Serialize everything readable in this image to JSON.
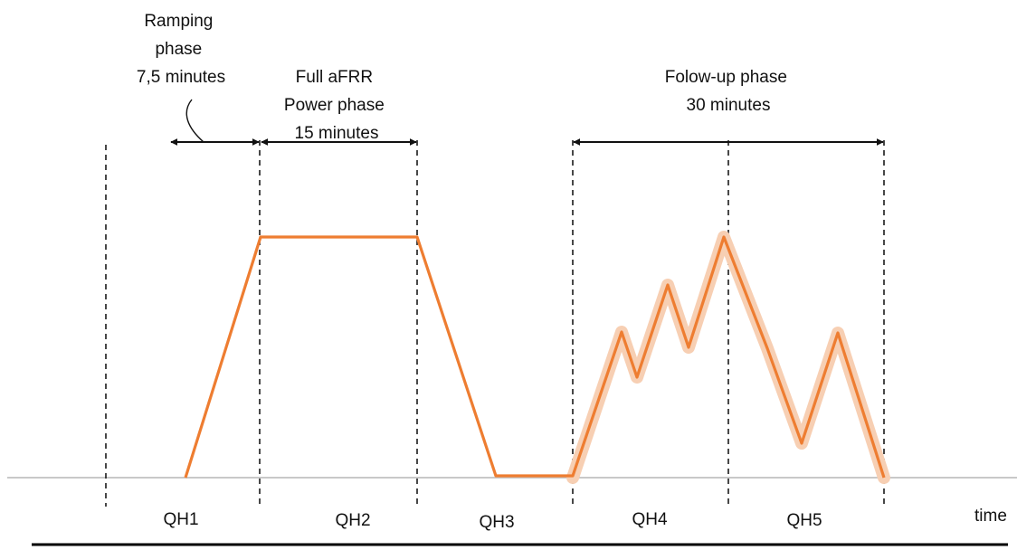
{
  "phases": {
    "ramping": [
      "Ramping",
      "phase",
      "7,5 minutes"
    ],
    "full_power": [
      "Full  aFRR",
      "Power phase",
      "15 minutes"
    ],
    "follow_up": [
      "Folow-up  phase",
      "30 minutes"
    ]
  },
  "quarter_hours": [
    "QH1",
    "QH2",
    "QH3",
    "QH4",
    "QH5"
  ],
  "axis": {
    "x_label": "time"
  },
  "colors": {
    "profile": "#ee7d31",
    "profile_band": "#f7cfb3",
    "baseline": "#c8c8c8",
    "guides": "#1a1a1a"
  }
}
